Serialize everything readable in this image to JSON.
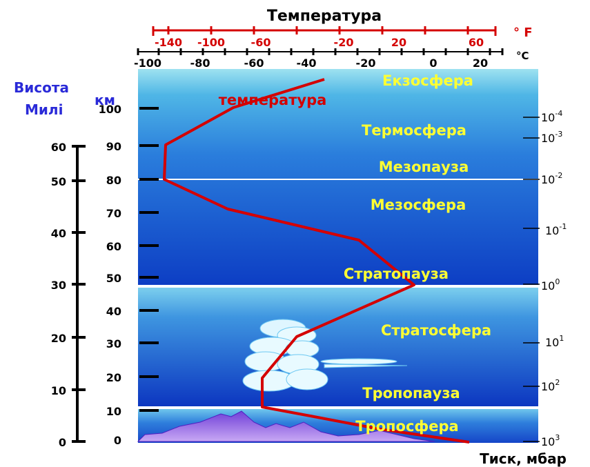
{
  "top_axis_title": "Температура",
  "fahrenheit": {
    "unit": "° F",
    "ticks": [
      "-140",
      "-100",
      "-60",
      "-20",
      "20",
      "60"
    ],
    "color": "#d40000"
  },
  "celsius": {
    "unit": "°C",
    "ticks": [
      "-100",
      "-80",
      "-60",
      "-40",
      "-20",
      "0",
      "20"
    ]
  },
  "left_axes": {
    "height_label": "Висота",
    "km_label": "км",
    "miles_label": "Милі",
    "km_ticks": [
      "100",
      "90",
      "80",
      "70",
      "60",
      "50",
      "40",
      "30",
      "20",
      "10",
      "0"
    ],
    "mile_ticks": [
      "60",
      "50",
      "40",
      "30",
      "20",
      "10",
      "0"
    ]
  },
  "pressure_axis": {
    "title": "Тиск, мбар",
    "ticks": [
      {
        "base": "10",
        "exp": "-4"
      },
      {
        "base": "10",
        "exp": "-3"
      },
      {
        "base": "10",
        "exp": "-2"
      },
      {
        "base": "10",
        "exp": "-1"
      },
      {
        "base": "10",
        "exp": "0"
      },
      {
        "base": "10",
        "exp": "1"
      },
      {
        "base": "10",
        "exp": "2"
      },
      {
        "base": "10",
        "exp": "3"
      }
    ]
  },
  "layers": {
    "exosphere": "Екзосфера",
    "thermosphere": "Термосфера",
    "mesopause": "Мезопауза",
    "mesosphere": "Мезосфера",
    "stratopause": "Стратопауза",
    "stratosphere": "Стратосфера",
    "tropopause": "Тропопауза",
    "troposphere": "Тропосфера"
  },
  "curve_label": "температура",
  "colors": {
    "sky_top": "#7fd6ea",
    "sky_mid": "#1f6fd8",
    "sky_deep": "#0a2fb8",
    "curve": "#d40000",
    "layer_text": "#ffff33"
  }
}
